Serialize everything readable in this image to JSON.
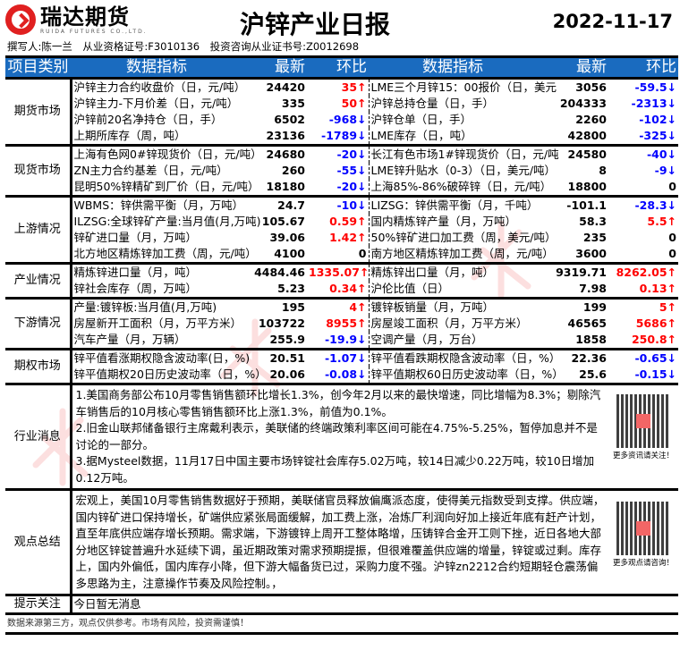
{
  "header": {
    "logo_cn": "瑞达期货",
    "logo_en": "RUIDA FUTURES CO.,LTD.",
    "title": "沪锌产业日报",
    "date": "2022-11-17",
    "author_line": "撰写人:陈一兰　从业资格证号:F3010136　投资咨询从业证书号:Z0012698"
  },
  "columns": {
    "category": "项目类别",
    "indicator": "数据指标",
    "latest": "最新",
    "change": "环比"
  },
  "sections": [
    {
      "category": "期货市场",
      "rows": [
        {
          "l": [
            "沪锌主力合约收盘价（日，元/吨）",
            "24420",
            "35↑",
            "up"
          ],
          "r": [
            "LME三个月锌15：00报价（日，美元",
            "3056",
            "-59.5↓",
            "down"
          ]
        },
        {
          "l": [
            "沪锌主力-下月价差（日，元/吨）",
            "335",
            "50↑",
            "up"
          ],
          "r": [
            "沪锌总持仓量（日，手）",
            "204333",
            "-2313↓",
            "down"
          ]
        },
        {
          "l": [
            "沪锌前20名净持仓（日，手）",
            "6502",
            "-968↓",
            "down"
          ],
          "r": [
            "沪锌仓单（日，手）",
            "2260",
            "-102↓",
            "down"
          ]
        },
        {
          "l": [
            "上期所库存（周，吨）",
            "23136",
            "-1789↓",
            "down"
          ],
          "r": [
            "LME库存（日，吨）",
            "42800",
            "-325↓",
            "down"
          ]
        }
      ]
    },
    {
      "category": "现货市场",
      "rows": [
        {
          "l": [
            "上海有色网0#锌现货价（日，元/吨）",
            "24680",
            "-20↓",
            "down"
          ],
          "r": [
            "长江有色市场1#锌现货价（日，元/吨",
            "24580",
            "-40↓",
            "down"
          ]
        },
        {
          "l": [
            "ZN主力合约基差（日，元/吨）",
            "260",
            "-55↓",
            "down"
          ],
          "r": [
            "LME锌升贴水（0-3）（日，美元/吨）",
            "8",
            "-9↓",
            "down"
          ]
        },
        {
          "l": [
            "昆明50%锌精矿到厂价（日，元/吨）",
            "18180",
            "-20↓",
            "down"
          ],
          "r": [
            "上海85%-86%破碎锌（日，元/吨）",
            "18800",
            "0",
            "flat"
          ]
        }
      ]
    },
    {
      "category": "上游情况",
      "rows": [
        {
          "l": [
            "WBMS：锌供需平衡（月，万吨）",
            "24.7",
            "-10↓",
            "down"
          ],
          "r": [
            "LIZSG：锌供需平衡（月，千吨）",
            "-101.1",
            "-28.3↓",
            "down"
          ]
        },
        {
          "l": [
            "ILZSG:全球锌矿产量:当月值(月,万吨)",
            "105.67",
            "0.59↑",
            "up"
          ],
          "r": [
            "国内精炼锌产量（月，万吨）",
            "58.3",
            "5.5↑",
            "up"
          ]
        },
        {
          "l": [
            "锌矿进口量（月，万吨）",
            "39.06",
            "1.42↑",
            "up"
          ],
          "r": [
            "50%锌矿进口加工费（周，美元/吨）",
            "235",
            "0",
            "flat"
          ]
        },
        {
          "l": [
            "北方地区精炼锌加工费（周，元/吨）",
            "4100",
            "0",
            "flat"
          ],
          "r": [
            "南方地区精炼锌加工费（周，元/吨）",
            "3600",
            "0",
            "flat"
          ]
        }
      ]
    },
    {
      "category": "产业情况",
      "rows": [
        {
          "l": [
            "精炼锌进口量（月，吨）",
            "4484.46",
            "1335.07↑",
            "up"
          ],
          "r": [
            "精炼锌出口量（月，吨）",
            "9319.71",
            "8262.05↑",
            "up"
          ]
        },
        {
          "l": [
            "锌社会库存（周，万吨）",
            "5.23",
            "0.34↑",
            "up"
          ],
          "r": [
            "沪伦比值（日）",
            "7.98",
            "0.13↑",
            "up"
          ]
        }
      ]
    },
    {
      "category": "下游情况",
      "rows": [
        {
          "l": [
            "产量:镀锌板:当月值(月,万吨)",
            "195",
            "4↑",
            "up"
          ],
          "r": [
            "镀锌板销量（月，万吨）",
            "199",
            "5↑",
            "up"
          ]
        },
        {
          "l": [
            "房屋新开工面积（月，万平方米）",
            "103722",
            "8955↑",
            "up"
          ],
          "r": [
            "房屋竣工面积（月，万平方米）",
            "46565",
            "5686↑",
            "up"
          ]
        },
        {
          "l": [
            "汽车产量（月，万辆）",
            "255.9",
            "-19.9↓",
            "down"
          ],
          "r": [
            "空调产量（月，万台）",
            "1858",
            "250.8↑",
            "up"
          ]
        }
      ]
    },
    {
      "category": "期权市场",
      "rows": [
        {
          "l": [
            "锌平值看涨期权隐含波动率(日，%)",
            "20.51",
            "-1.07↓",
            "down"
          ],
          "r": [
            "锌平值看跌期权隐含波动率（日，%）",
            "22.36",
            "-0.65↓",
            "down"
          ]
        },
        {
          "l": [
            "锌平值期权20日历史波动率（日，%）",
            "20.06",
            "-0.08↓",
            "down"
          ],
          "r": [
            "锌平值期权60日历史波动率（日，%）",
            "25.6",
            "-0.15↓",
            "down"
          ]
        }
      ]
    }
  ],
  "news": {
    "category": "行业消息",
    "items": [
      "1.美国商务部公布10月零售销售额环比增长1.3%，创今年2月以来的最快增速，同比增幅为8.3%；剔除汽车销售后的10月核心零售销售额环比上涨1.3%，前值为0.1%。",
      "2.旧金山联邦储备银行主席戴利表示，美联储的终端政策利率区间可能在4.75%-5.25%，暂停加息并不是讨论的一部分。",
      "3.据Mysteel数据，11月17日中国主要市场锌锭社会库存5.02万吨，较14日减少0.22万吨，较10日增加0.12万吨。"
    ],
    "qr_caption": "更多资讯请关注！"
  },
  "view": {
    "category": "观点总结",
    "text": "宏观上，美国10月零售销售数据好于预期，美联储官员释放偏鹰派态度，使得美元指数受到支撑。供应端，国内锌矿进口保持增长，矿端供应紧张局面缓解，加工费上涨，冶炼厂利润向好加上接近年底有赶产计划，直至年底供应端存增长预期。需求端，下游镀锌上周开工整体略增，压铸锌合金开工则下挫，近日各地大部分地区锌锭普遍升水延续下调，虽近期政策对需求预期提振，但很难覆盖供应端的增量，锌锭或过剩。库存上，国内外偏低，国内库存小降，但下游大幅备货已过，采购力度不强。沪锌zn2212合约短期轻仓震荡偏多思路为主，注意操作节奏及风险控制。，",
    "qr_caption": "更多观点请咨询！"
  },
  "tips": {
    "category": "提示关注",
    "text": "今日暂无消息"
  },
  "footer": "数据来源第三方，观点仅供参考。市场有风险，投资需谨慎！",
  "watermark": "瑞达研究",
  "colors": {
    "header_bg": "#1a6bbf",
    "up": "#ff0000",
    "down": "#0000ff",
    "logo": "#e02020"
  }
}
